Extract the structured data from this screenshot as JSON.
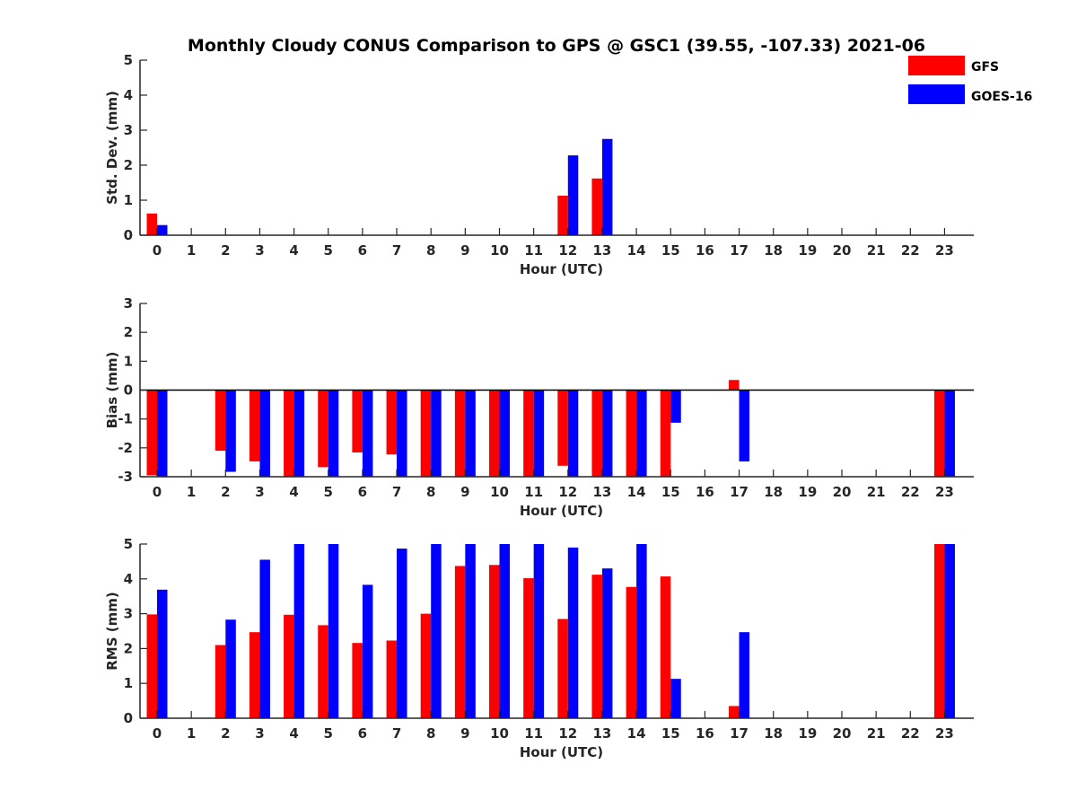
{
  "title": "Monthly Cloudy CONUS Comparison to GPS @ GSC1 (39.55, -107.33) 2021-06",
  "legend": [
    {
      "name": "GFS",
      "color": "#ff0000"
    },
    {
      "name": "GOES-16",
      "color": "#0000ff"
    }
  ],
  "chart_data": [
    {
      "type": "bar",
      "panel": "std-dev",
      "xlabel": "Hour (UTC)",
      "ylabel": "Std. Dev. (mm)",
      "ylim": [
        0,
        5
      ],
      "yticks": [
        0,
        1,
        2,
        3,
        4,
        5
      ],
      "categories": [
        "0",
        "1",
        "2",
        "3",
        "4",
        "5",
        "6",
        "7",
        "8",
        "9",
        "10",
        "11",
        "12",
        "13",
        "14",
        "15",
        "16",
        "17",
        "18",
        "19",
        "20",
        "21",
        "22",
        "23"
      ],
      "series": [
        {
          "name": "GFS",
          "color": "#ff0000",
          "values": [
            0.62,
            null,
            0,
            0,
            0,
            0,
            0,
            0,
            0,
            0,
            0,
            0,
            1.13,
            1.62,
            0,
            0,
            null,
            0,
            null,
            null,
            null,
            null,
            null,
            0
          ]
        },
        {
          "name": "GOES-16",
          "color": "#0000ff",
          "values": [
            0.29,
            null,
            0,
            0,
            0,
            0,
            0,
            0,
            0,
            0,
            0,
            0,
            2.28,
            2.75,
            0,
            0,
            null,
            0,
            null,
            null,
            null,
            null,
            null,
            0
          ]
        }
      ]
    },
    {
      "type": "bar",
      "panel": "bias",
      "xlabel": "Hour (UTC)",
      "ylabel": "Bias (mm)",
      "ylim": [
        -3,
        3
      ],
      "yticks": [
        -3,
        -2,
        -1,
        0,
        1,
        2,
        3
      ],
      "zero_line": true,
      "categories": [
        "0",
        "1",
        "2",
        "3",
        "4",
        "5",
        "6",
        "7",
        "8",
        "9",
        "10",
        "11",
        "12",
        "13",
        "14",
        "15",
        "16",
        "17",
        "18",
        "19",
        "20",
        "21",
        "22",
        "23"
      ],
      "series": [
        {
          "name": "GFS",
          "color": "#ff0000",
          "values": [
            -2.95,
            null,
            -2.1,
            -2.47,
            -3.0,
            -2.67,
            -2.16,
            -2.23,
            -3.0,
            -3.0,
            -3.0,
            -3.0,
            -2.62,
            -3.0,
            -3.0,
            -3.0,
            null,
            0.35,
            null,
            null,
            null,
            null,
            null,
            -3.0
          ]
        },
        {
          "name": "GOES-16",
          "color": "#0000ff",
          "values": [
            -3.0,
            null,
            -2.83,
            -3.0,
            -3.0,
            -3.0,
            -3.0,
            -3.0,
            -3.0,
            -3.0,
            -3.0,
            -3.0,
            -3.0,
            -3.0,
            -3.0,
            -1.13,
            null,
            -2.47,
            null,
            null,
            null,
            null,
            null,
            -3.0
          ]
        }
      ]
    },
    {
      "type": "bar",
      "panel": "rms",
      "xlabel": "Hour (UTC)",
      "ylabel": "RMS (mm)",
      "ylim": [
        0,
        5
      ],
      "yticks": [
        0,
        1,
        2,
        3,
        4,
        5
      ],
      "categories": [
        "0",
        "1",
        "2",
        "3",
        "4",
        "5",
        "6",
        "7",
        "8",
        "9",
        "10",
        "11",
        "12",
        "13",
        "14",
        "15",
        "16",
        "17",
        "18",
        "19",
        "20",
        "21",
        "22",
        "23"
      ],
      "series": [
        {
          "name": "GFS",
          "color": "#ff0000",
          "values": [
            2.98,
            null,
            2.1,
            2.47,
            2.97,
            2.67,
            2.16,
            2.23,
            3.0,
            4.37,
            4.4,
            4.02,
            2.85,
            4.12,
            3.77,
            4.07,
            null,
            0.35,
            null,
            null,
            null,
            null,
            null,
            5.0
          ]
        },
        {
          "name": "GOES-16",
          "color": "#0000ff",
          "values": [
            3.69,
            null,
            2.83,
            4.55,
            5.0,
            5.0,
            3.83,
            4.87,
            5.0,
            5.0,
            5.0,
            5.0,
            4.9,
            4.3,
            5.0,
            1.13,
            null,
            2.47,
            null,
            null,
            null,
            null,
            null,
            5.0
          ]
        }
      ]
    }
  ]
}
